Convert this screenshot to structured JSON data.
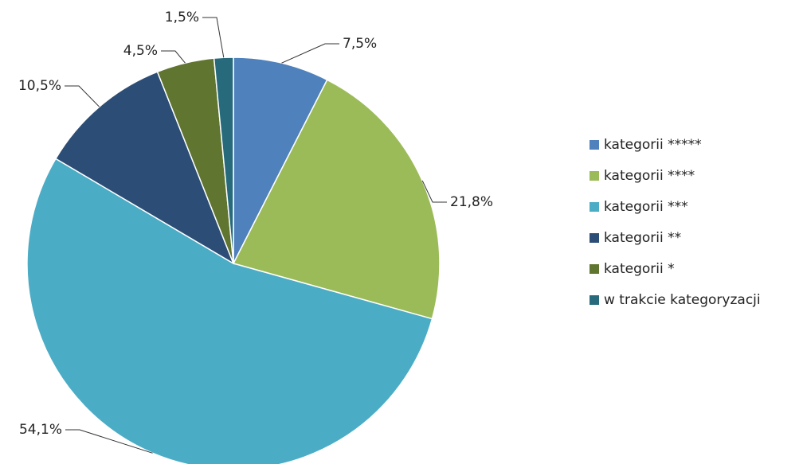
{
  "chart_data": {
    "type": "pie",
    "categories": [
      "kategorii *****",
      "kategorii ****",
      "kategorii ***",
      "kategorii **",
      "kategorii *",
      "w trakcie kategoryzacji"
    ],
    "values": [
      7.5,
      21.8,
      54.1,
      10.5,
      4.5,
      1.5
    ],
    "value_labels": [
      "7,5%",
      "21,8%",
      "54,1%",
      "10,5%",
      "4,5%",
      "1,5%"
    ],
    "colors": [
      "#4f81bd",
      "#9bbb59",
      "#4bacc6",
      "#2c4d75",
      "#5f7530",
      "#276a7c"
    ],
    "legend": "right"
  }
}
